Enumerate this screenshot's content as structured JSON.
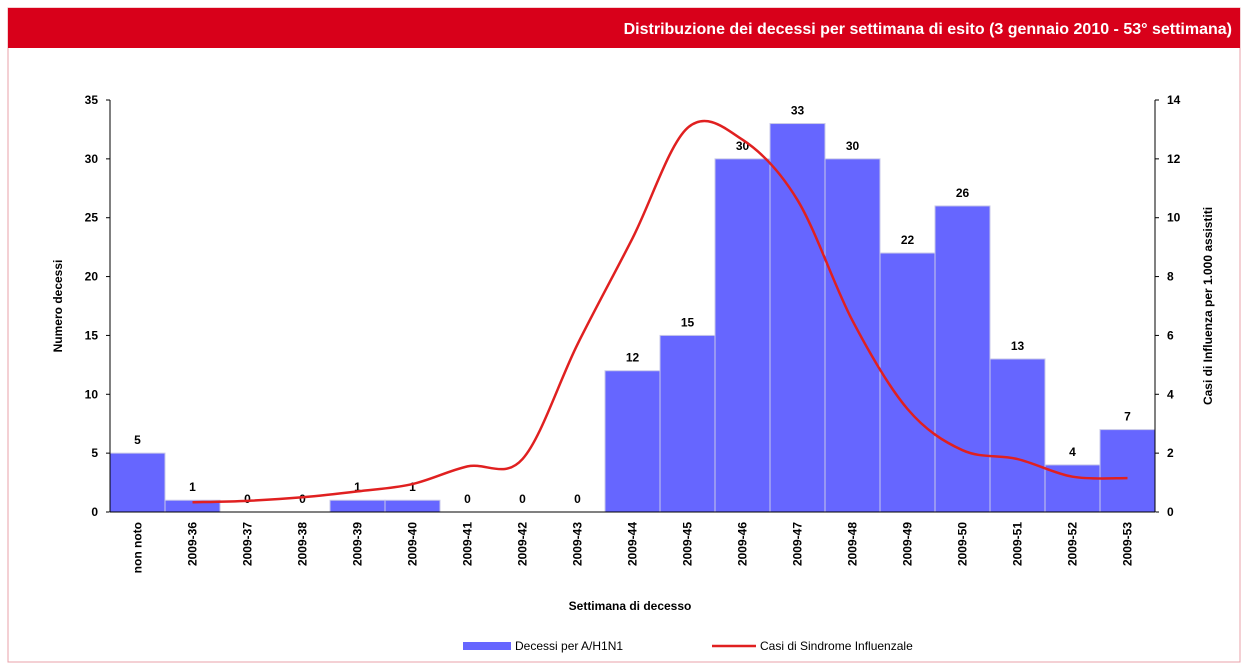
{
  "chart_data": {
    "type": "bar",
    "title": "Distribuzione dei decessi per settimana di esito (3 gennaio 2010 - 53° settimana)",
    "x_label": "Settimana di decesso",
    "y_label": "Numero decessi",
    "y2_label": "Casi di Influenza per 1.000 assistiti",
    "categories": [
      "non noto",
      "2009-36",
      "2009-37",
      "2009-38",
      "2009-39",
      "2009-40",
      "2009-41",
      "2009-42",
      "2009-43",
      "2009-44",
      "2009-45",
      "2009-46",
      "2009-47",
      "2009-48",
      "2009-49",
      "2009-50",
      "2009-51",
      "2009-52",
      "2009-53"
    ],
    "series": [
      {
        "name": "Decessi per A/H1N1",
        "type": "bar",
        "color": "#6666ff",
        "values": [
          5,
          1,
          0,
          0,
          1,
          1,
          0,
          0,
          0,
          12,
          15,
          30,
          33,
          30,
          22,
          26,
          13,
          4,
          7
        ]
      },
      {
        "name": "Casi di Sindrome Influenzale",
        "type": "line",
        "axis": "y2",
        "color": "#e02020",
        "values": [
          null,
          0.33,
          0.38,
          0.5,
          0.7,
          0.95,
          1.55,
          1.8,
          5.7,
          9.3,
          13.05,
          12.65,
          10.6,
          6.5,
          3.5,
          2.1,
          1.8,
          1.2,
          1.15
        ]
      }
    ],
    "ylim": [
      0,
      35
    ],
    "yticks": [
      0,
      5,
      10,
      15,
      20,
      25,
      30,
      35
    ],
    "y2lim": [
      0,
      14
    ],
    "y2ticks": [
      0,
      2,
      4,
      6,
      8,
      10,
      12,
      14
    ]
  }
}
